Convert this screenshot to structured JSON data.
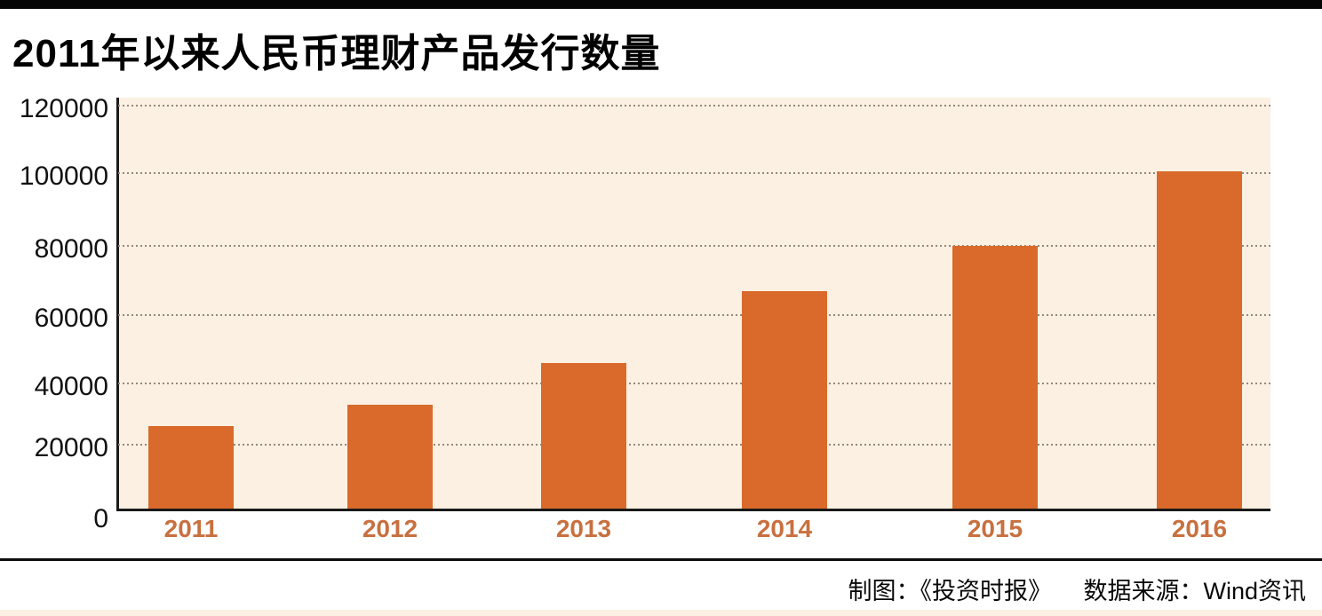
{
  "page": {
    "title": "2011年以来人民币理财产品发行数量",
    "footer": {
      "credit": "制图：《投资时报》",
      "source": "数据来源：Wind资讯"
    }
  },
  "chart_data": {
    "type": "bar",
    "title": "2011年以来人民币理财产品发行数量",
    "categories": [
      "2011",
      "2012",
      "2013",
      "2014",
      "2015",
      "2016"
    ],
    "values": [
      26000,
      33000,
      46000,
      67000,
      80000,
      100500
    ],
    "xlabel": "",
    "ylabel": "",
    "ylim": [
      0,
      120000
    ],
    "yticks": [
      0,
      20000,
      40000,
      60000,
      80000,
      100000,
      120000
    ],
    "grid": "horizontal-dotted",
    "legend": "none",
    "colors": {
      "bar": "#d96a2b",
      "plot_background": "#fbf0e1",
      "year_label": "#c8703f",
      "axis": "#1a1a1a",
      "gridline": "#93887a",
      "top_bar": "#060606"
    }
  }
}
